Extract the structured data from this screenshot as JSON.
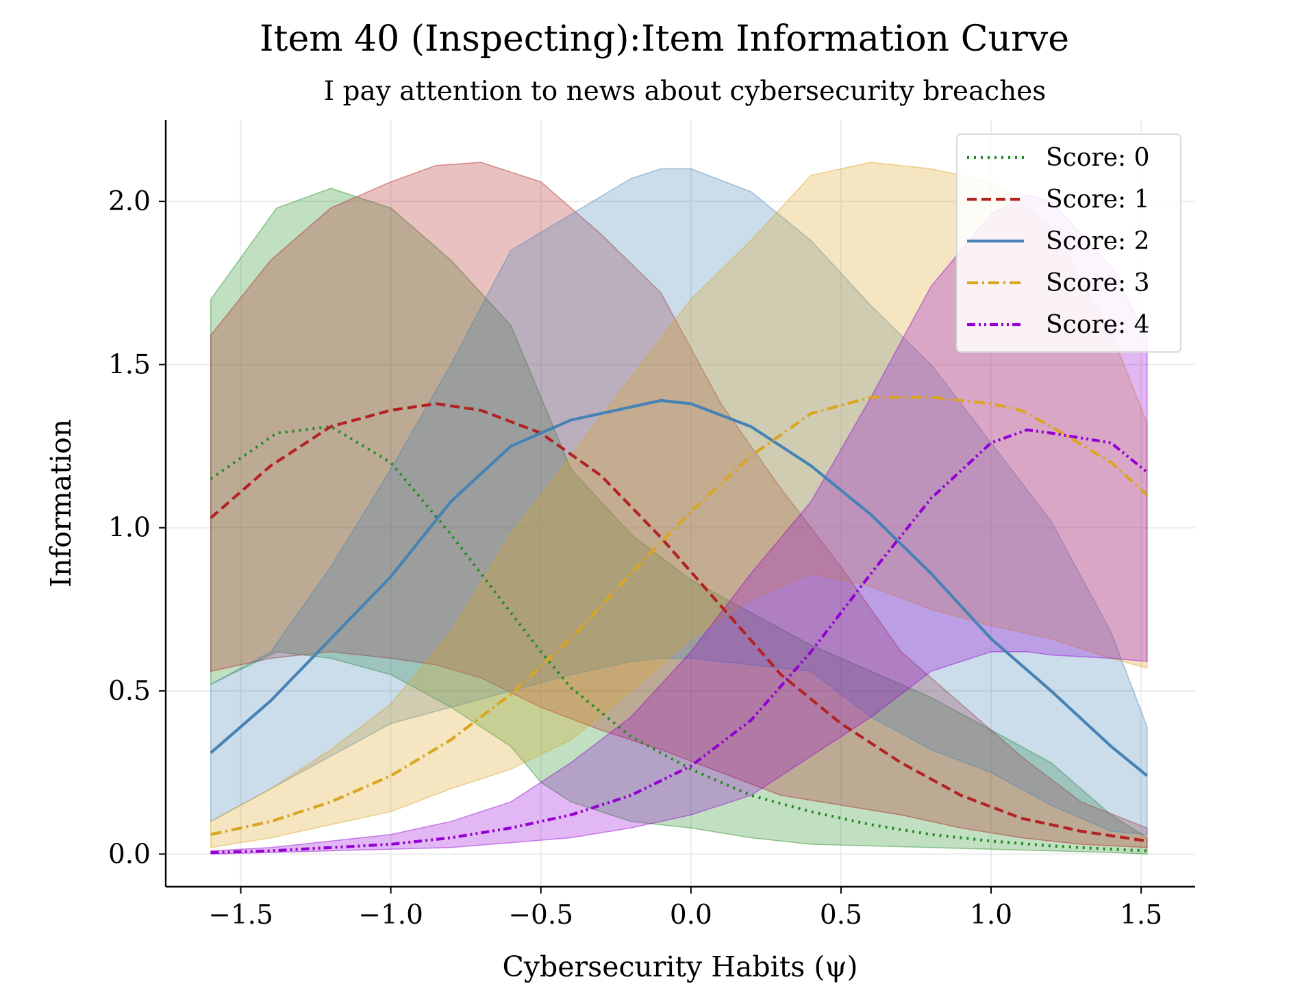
{
  "chart_data": {
    "type": "line",
    "title": "Item 40 (Inspecting):Item Information Curve",
    "subtitle": "I pay attention to news about cybersecurity breaches",
    "xlabel": "Cybersecurity Habits (ψ)",
    "ylabel": "Information",
    "xlim": [
      -1.75,
      1.68
    ],
    "ylim": [
      -0.1,
      2.25
    ],
    "xticks": [
      -1.5,
      -1.0,
      -0.5,
      0.0,
      0.5,
      1.0,
      1.5
    ],
    "xtick_labels": [
      "−1.5",
      "−1.0",
      "−0.5",
      "0.0",
      "0.5",
      "1.0",
      "1.5"
    ],
    "yticks": [
      0.0,
      0.5,
      1.0,
      1.5,
      2.0
    ],
    "ytick_labels": [
      "0.0",
      "0.5",
      "1.0",
      "1.5",
      "2.0"
    ],
    "grid": true,
    "legend_position": "top-right",
    "series": [
      {
        "name": "Score: 0",
        "color": "#228B22",
        "dash": "dotted",
        "x": [
          -1.6,
          -1.38,
          -1.2,
          -1.0,
          -0.8,
          -0.6,
          -0.5,
          -0.4,
          -0.2,
          0.0,
          0.2,
          0.4,
          0.6,
          0.8,
          1.0,
          1.2,
          1.4,
          1.52
        ],
        "y": [
          1.15,
          1.29,
          1.31,
          1.2,
          0.98,
          0.74,
          0.62,
          0.51,
          0.36,
          0.26,
          0.18,
          0.13,
          0.09,
          0.06,
          0.04,
          0.025,
          0.015,
          0.01
        ],
        "upper": [
          1.7,
          1.98,
          2.04,
          1.98,
          1.82,
          1.62,
          1.4,
          1.18,
          0.98,
          0.84,
          0.74,
          0.64,
          0.56,
          0.48,
          0.38,
          0.28,
          0.12,
          0.05
        ],
        "lower": [
          0.52,
          0.62,
          0.6,
          0.55,
          0.45,
          0.33,
          0.22,
          0.16,
          0.1,
          0.08,
          0.05,
          0.03,
          0.025,
          0.02,
          0.015,
          0.01,
          0.005,
          0.0
        ]
      },
      {
        "name": "Score: 1",
        "color": "#B22222",
        "dash": "dashed",
        "x": [
          -1.6,
          -1.4,
          -1.2,
          -1.0,
          -0.85,
          -0.7,
          -0.5,
          -0.3,
          -0.1,
          0.1,
          0.3,
          0.5,
          0.7,
          0.9,
          1.1,
          1.3,
          1.52
        ],
        "y": [
          1.03,
          1.19,
          1.31,
          1.36,
          1.38,
          1.36,
          1.29,
          1.16,
          0.97,
          0.76,
          0.55,
          0.4,
          0.28,
          0.18,
          0.11,
          0.07,
          0.04
        ],
        "upper": [
          1.59,
          1.82,
          1.98,
          2.06,
          2.11,
          2.12,
          2.06,
          1.9,
          1.72,
          1.38,
          1.12,
          0.88,
          0.62,
          0.46,
          0.3,
          0.16,
          0.08
        ],
        "lower": [
          0.56,
          0.6,
          0.62,
          0.6,
          0.58,
          0.54,
          0.45,
          0.38,
          0.32,
          0.25,
          0.18,
          0.15,
          0.12,
          0.08,
          0.05,
          0.03,
          0.02
        ]
      },
      {
        "name": "Score: 2",
        "color": "#4682B4",
        "dash": "solid",
        "x": [
          -1.6,
          -1.4,
          -1.2,
          -1.0,
          -0.8,
          -0.6,
          -0.4,
          -0.2,
          -0.1,
          0.0,
          0.2,
          0.4,
          0.6,
          0.8,
          1.0,
          1.2,
          1.4,
          1.52
        ],
        "y": [
          0.31,
          0.47,
          0.66,
          0.85,
          1.08,
          1.25,
          1.33,
          1.37,
          1.39,
          1.38,
          1.31,
          1.19,
          1.04,
          0.86,
          0.66,
          0.5,
          0.33,
          0.24
        ],
        "upper": [
          0.52,
          0.62,
          0.88,
          1.18,
          1.5,
          1.85,
          1.96,
          2.07,
          2.1,
          2.1,
          2.03,
          1.88,
          1.68,
          1.5,
          1.26,
          1.02,
          0.68,
          0.39
        ],
        "lower": [
          0.1,
          0.2,
          0.3,
          0.4,
          0.45,
          0.5,
          0.55,
          0.59,
          0.6,
          0.6,
          0.58,
          0.56,
          0.42,
          0.32,
          0.25,
          0.15,
          0.07,
          0.06
        ]
      },
      {
        "name": "Score: 3",
        "color": "#DAA520",
        "dash": "dashdot",
        "x": [
          -1.6,
          -1.4,
          -1.2,
          -1.0,
          -0.8,
          -0.6,
          -0.4,
          -0.2,
          0.0,
          0.2,
          0.4,
          0.6,
          0.8,
          1.0,
          1.1,
          1.2,
          1.4,
          1.52
        ],
        "y": [
          0.06,
          0.1,
          0.16,
          0.24,
          0.35,
          0.49,
          0.66,
          0.86,
          1.05,
          1.22,
          1.35,
          1.4,
          1.4,
          1.38,
          1.36,
          1.31,
          1.2,
          1.1
        ],
        "upper": [
          0.1,
          0.2,
          0.32,
          0.46,
          0.68,
          0.98,
          1.22,
          1.46,
          1.7,
          1.88,
          2.08,
          2.12,
          2.1,
          2.06,
          2.0,
          1.92,
          1.6,
          1.32
        ],
        "lower": [
          0.02,
          0.05,
          0.09,
          0.13,
          0.2,
          0.26,
          0.35,
          0.5,
          0.66,
          0.78,
          0.86,
          0.82,
          0.75,
          0.7,
          0.68,
          0.66,
          0.6,
          0.57
        ]
      },
      {
        "name": "Score: 4",
        "color": "#9400D3",
        "dash": "dashdotdot",
        "x": [
          -1.6,
          -1.4,
          -1.2,
          -1.0,
          -0.8,
          -0.6,
          -0.4,
          -0.2,
          0.0,
          0.2,
          0.4,
          0.6,
          0.8,
          1.0,
          1.12,
          1.2,
          1.4,
          1.52
        ],
        "y": [
          0.005,
          0.01,
          0.02,
          0.03,
          0.05,
          0.08,
          0.12,
          0.18,
          0.27,
          0.41,
          0.62,
          0.86,
          1.09,
          1.26,
          1.3,
          1.29,
          1.26,
          1.17
        ],
        "upper": [
          0.01,
          0.02,
          0.04,
          0.06,
          0.1,
          0.16,
          0.28,
          0.42,
          0.62,
          0.86,
          1.08,
          1.4,
          1.74,
          1.96,
          2.02,
          2.0,
          1.8,
          1.58
        ],
        "lower": [
          0.0,
          0.005,
          0.01,
          0.015,
          0.02,
          0.035,
          0.05,
          0.08,
          0.12,
          0.18,
          0.3,
          0.42,
          0.56,
          0.62,
          0.62,
          0.61,
          0.6,
          0.59
        ]
      }
    ]
  }
}
